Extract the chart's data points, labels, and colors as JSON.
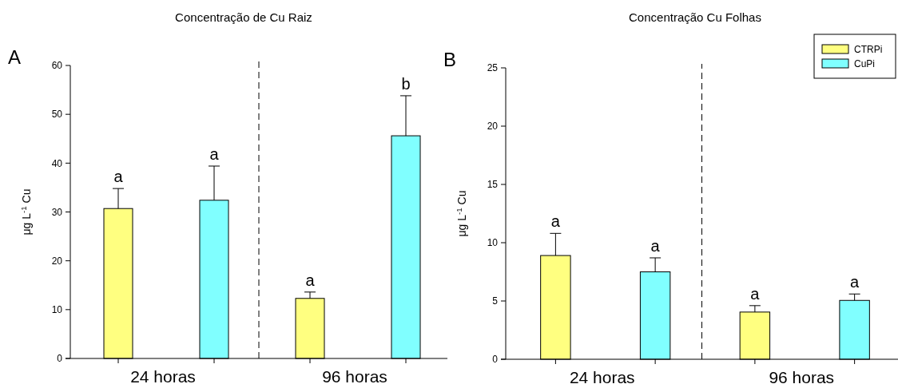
{
  "chart_data": [
    {
      "type": "bar",
      "title": "Concentração de Cu Raiz",
      "ylabel": "μg L$^{-1}$ Cu",
      "categories": [
        "24 horas",
        "96 horas"
      ],
      "series": [
        {
          "color": "#ffff80",
          "values": [
            30.7,
            12.3
          ],
          "errors": [
            [
              30.7,
              34.8
            ],
            [
              12.3,
              13.6
            ]
          ]
        },
        {
          "color": "#80ffff",
          "values": [
            32.4,
            45.6
          ],
          "errors": [
            [
              32.4,
              39.4
            ],
            [
              45.6,
              53.8
            ]
          ]
        }
      ],
      "ylim": [
        0,
        60
      ],
      "yticks": [
        0,
        10,
        20,
        30,
        40,
        50,
        60
      ],
      "legend": false,
      "annotations": [
        "A",
        "a",
        "a",
        "a",
        "b"
      ]
    },
    {
      "type": "bar",
      "title": "Concentração Cu Folhas",
      "ylabel": "μg L$^{-1}$ Cu",
      "categories": [
        "24 horas",
        "96 horas"
      ],
      "series": [
        {
          "name": "CTRPi",
          "color": "#ffff80",
          "values": [
            8.9,
            4.05
          ],
          "errors": [
            [
              8.9,
              10.8
            ],
            [
              4.05,
              4.6
            ]
          ]
        },
        {
          "name": "CuPi",
          "color": "#80ffff",
          "values": [
            7.5,
            5.05
          ],
          "errors": [
            [
              7.5,
              8.7
            ],
            [
              5.05,
              5.6
            ]
          ]
        }
      ],
      "ylim": [
        0,
        25
      ],
      "yticks": [
        0,
        5,
        10,
        15,
        20,
        25
      ],
      "legend": "top right",
      "annotations": [
        "B",
        "a",
        "a",
        "a",
        "a"
      ]
    }
  ]
}
